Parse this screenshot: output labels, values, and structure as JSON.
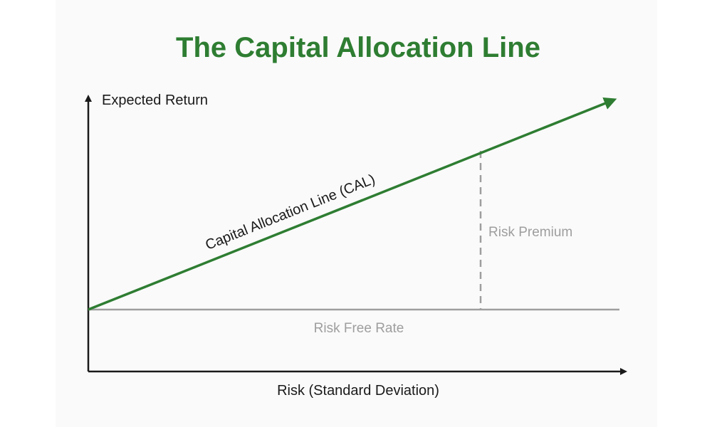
{
  "title": "The Capital Allocation Line",
  "y_axis_label": "Expected Return",
  "x_axis_label": "Risk (Standard Deviation)",
  "cal_label": "Capital Allocation Line (CAL)",
  "risk_premium_label": "Risk Premium",
  "risk_free_label": "Risk Free Rate",
  "colors": {
    "accent_green": "#2e7d32",
    "axis": "#1a1a1a",
    "text": "#1a1a1a",
    "muted": "#9e9e9e",
    "risk_free_line": "#9e9e9e",
    "panel_bg": "#fafafa"
  }
}
